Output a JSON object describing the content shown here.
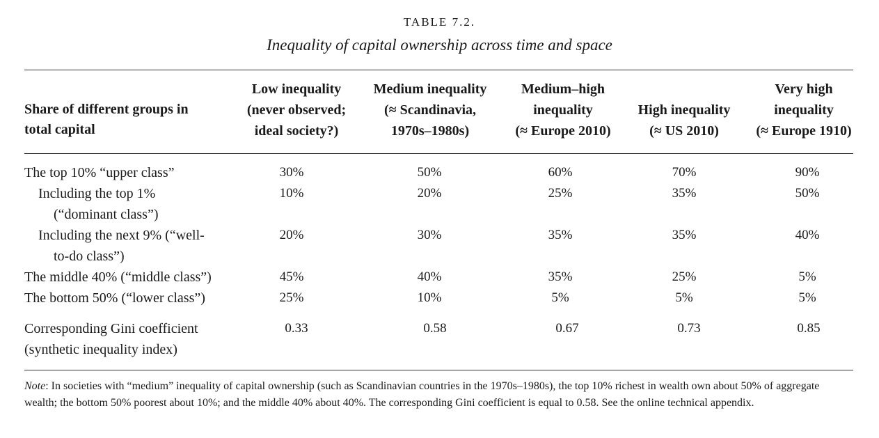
{
  "table_number": "TABLE 7.2.",
  "title": "Inequality of capital ownership across time and space",
  "header": {
    "row_header": [
      "Share of different groups in",
      "total capital"
    ],
    "columns": [
      {
        "lines": [
          "Low inequality",
          "(never observed;",
          "ideal society?)"
        ]
      },
      {
        "lines": [
          "Medium  inequality",
          "(≈ Scandinavia,",
          "1970s–1980s)"
        ]
      },
      {
        "lines": [
          "Medium–high",
          "inequality",
          "(≈ Europe 2010)"
        ]
      },
      {
        "lines": [
          "High inequality",
          "(≈ US 2010)"
        ]
      },
      {
        "lines": [
          "Very high",
          "inequality",
          "(≈ Europe 1910)"
        ]
      }
    ]
  },
  "rows": [
    {
      "label": [
        "The top 10% “upper class”"
      ],
      "values": [
        "30%",
        "50%",
        "60%",
        "70%",
        "90%"
      ]
    },
    {
      "label": [
        "Including the top 1%",
        "(“dominant class”)"
      ],
      "values": [
        "10%",
        "20%",
        "25%",
        "35%",
        "50%"
      ]
    },
    {
      "label": [
        "Including the next 9% (“well-",
        "to-do class”)"
      ],
      "values": [
        "20%",
        "30%",
        "35%",
        "35%",
        "40%"
      ]
    },
    {
      "label": [
        "The middle 40% (“middle class”)"
      ],
      "values": [
        "45%",
        "40%",
        "35%",
        "25%",
        "5%"
      ]
    },
    {
      "label": [
        "The bottom 50% (“lower class”)"
      ],
      "values": [
        "25%",
        "10%",
        "5%",
        "5%",
        "5%"
      ]
    },
    {
      "label": [
        "Corresponding Gini coefficient",
        "(synthetic inequality index)"
      ],
      "values": [
        "0.33",
        "0.58",
        "0.67",
        "0.73",
        "0.85"
      ]
    }
  ],
  "note": {
    "label": "Note",
    "text": ": In societies with “medium” inequality of capital ownership (such as Scandinavian countries in the 1970s–1980s), the top 10% richest in wealth own about 50% of aggregate wealth; the bottom 50% poorest about 10%; and the middle 40% about 40%. The corresponding Gini coefficient is equal to 0.58. See the online technical appendix."
  }
}
